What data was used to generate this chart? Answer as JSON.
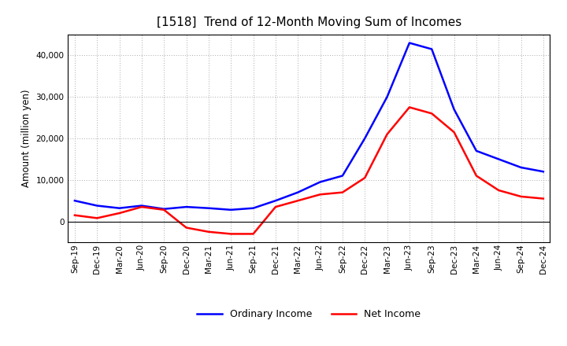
{
  "title": "[1518]  Trend of 12-Month Moving Sum of Incomes",
  "ylabel": "Amount (million yen)",
  "x_labels": [
    "Sep-19",
    "Dec-19",
    "Mar-20",
    "Jun-20",
    "Sep-20",
    "Dec-20",
    "Mar-21",
    "Jun-21",
    "Sep-21",
    "Dec-21",
    "Mar-22",
    "Jun-22",
    "Sep-22",
    "Dec-22",
    "Mar-23",
    "Jun-23",
    "Sep-23",
    "Dec-23",
    "Mar-24",
    "Jun-24",
    "Sep-24",
    "Dec-24"
  ],
  "ordinary_income": [
    5000,
    3800,
    3200,
    3800,
    3000,
    3500,
    3200,
    2800,
    3200,
    5000,
    7000,
    9500,
    11000,
    20000,
    30000,
    43000,
    41500,
    27000,
    17000,
    15000,
    13000,
    12000
  ],
  "net_income": [
    1500,
    800,
    2000,
    3500,
    2800,
    -1500,
    -2500,
    -3000,
    -3000,
    3500,
    5000,
    6500,
    7000,
    10500,
    21000,
    27500,
    26000,
    21500,
    11000,
    7500,
    6000,
    5500
  ],
  "ordinary_color": "#0000ff",
  "net_color": "#ff0000",
  "background_color": "#ffffff",
  "grid_color": "#aaaaaa",
  "ylim_min": -5000,
  "ylim_max": 45000,
  "yticks": [
    0,
    10000,
    20000,
    30000,
    40000
  ],
  "title_fontsize": 11,
  "tick_fontsize": 7.5,
  "ylabel_fontsize": 8.5,
  "legend_fontsize": 9,
  "legend_labels": [
    "Ordinary Income",
    "Net Income"
  ],
  "line_width": 1.8
}
